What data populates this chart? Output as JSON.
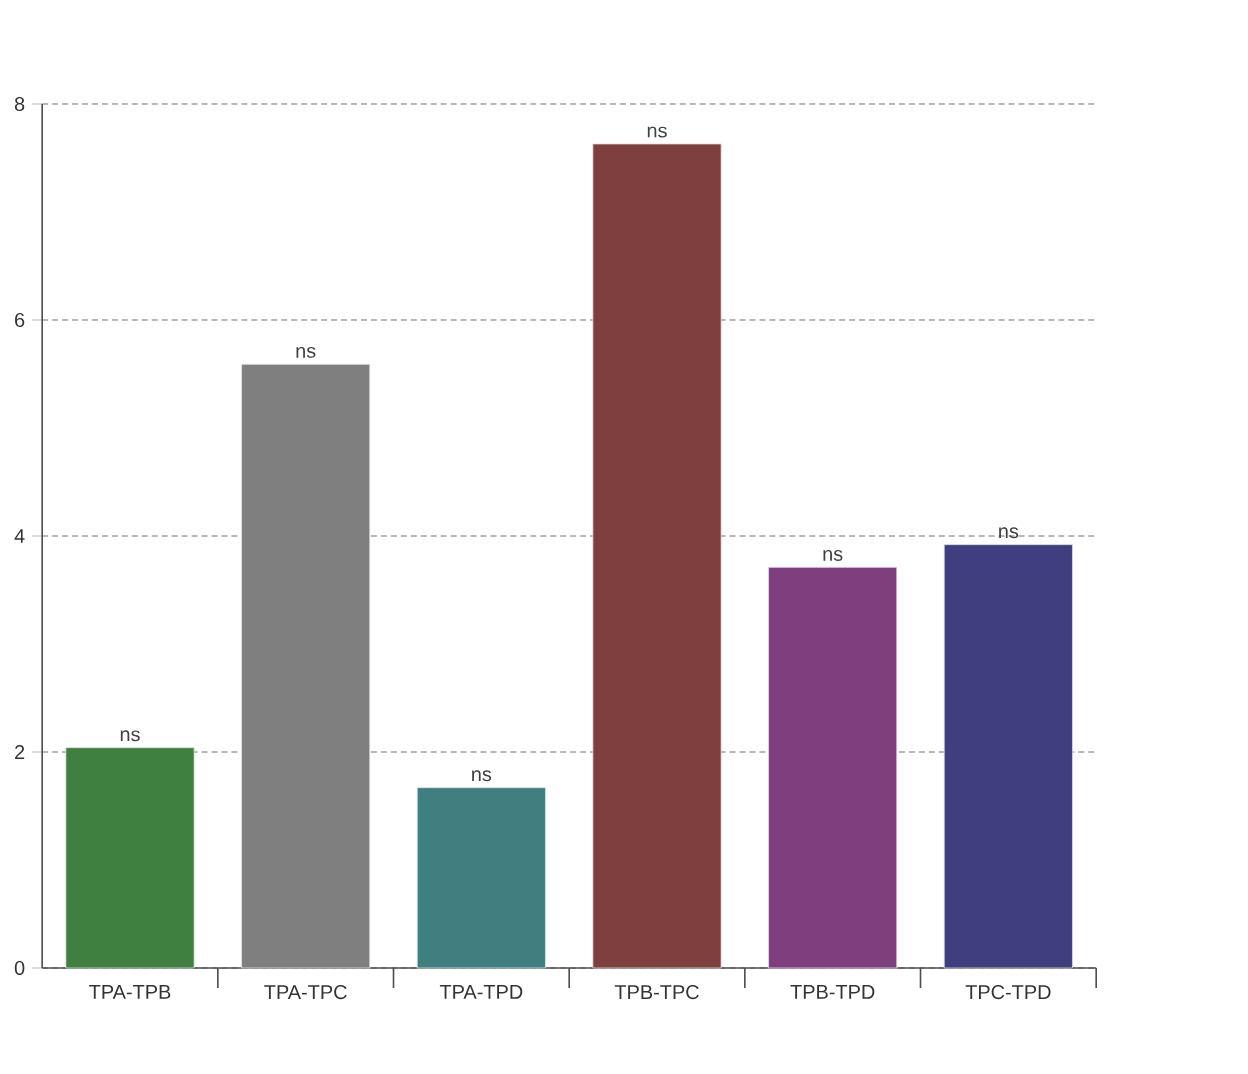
{
  "chart_data": {
    "type": "bar",
    "categories": [
      "TPA-TPB",
      "TPA-TPC",
      "TPA-TPD",
      "TPB-TPC",
      "TPB-TPD",
      "TPC-TPD"
    ],
    "values": [
      2.04,
      5.59,
      1.67,
      7.63,
      3.71,
      3.92
    ],
    "colors": [
      "#3f7f3f",
      "#7f7f7f",
      "#3f7f7f",
      "#7f3f3f",
      "#7f3f7f",
      "#3f3f7f"
    ],
    "ylim": [
      0,
      8
    ],
    "yticks": [
      0,
      2,
      4,
      6,
      8
    ],
    "grid": "y",
    "annotations": [
      {
        "text": "ns",
        "x": "TPA-TPB",
        "y": 2.04
      },
      {
        "text": "ns",
        "x": "TPA-TPC",
        "y": 5.59
      },
      {
        "text": "ns",
        "x": "TPA-TPD",
        "y": 1.67
      },
      {
        "text": "ns",
        "x": "TPB-TPC",
        "y": 7.63
      },
      {
        "text": "ns",
        "x": "TPB-TPD",
        "y": 3.71
      },
      {
        "text": "ns",
        "x": "TPC-TPD",
        "y": 3.92
      }
    ]
  }
}
